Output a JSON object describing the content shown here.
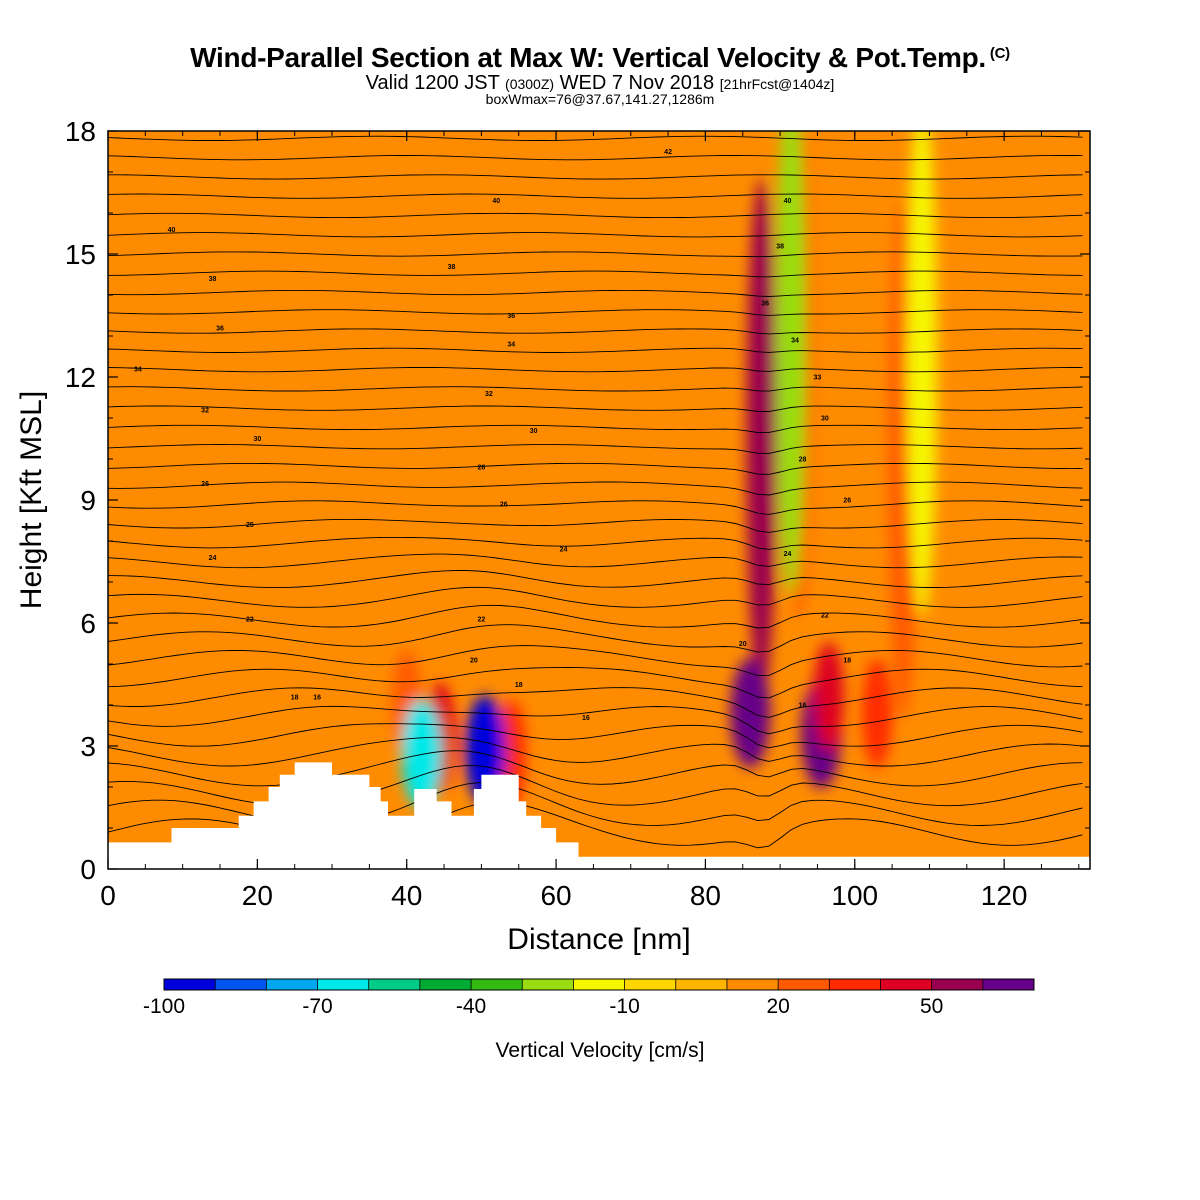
{
  "title": {
    "main": "Wind-Parallel Section at Max W: Vertical Velocity & Pot.Temp.",
    "copyright": "(C)",
    "valid_prefix": "Valid 1200 JST",
    "valid_utc": "(0300Z)",
    "valid_date": "WED 7 Nov 2018",
    "forecast": "[21hrFcst@1404z]",
    "box_info": "boxWmax=76@37.67,141.27,1286m"
  },
  "chart_data": {
    "type": "heatmap",
    "title": "Wind-Parallel Section at Max W: Vertical Velocity & Pot.Temp.",
    "xlabel": "Distance [nm]",
    "ylabel": "Height [Kft MSL]",
    "xlim": [
      0,
      131.5
    ],
    "ylim": [
      0,
      18
    ],
    "x_ticks": [
      "0",
      "20",
      "40",
      "60",
      "80",
      "100",
      "120"
    ],
    "y_ticks": [
      "0",
      "3",
      "6",
      "9",
      "12",
      "15",
      "18"
    ],
    "background_level": 10,
    "colorbar": {
      "label": "Vertical Velocity [cm/s]",
      "tick_labels": [
        "-100",
        "-70",
        "-40",
        "-10",
        "20",
        "50"
      ],
      "colors": [
        "#0000dd",
        "#0055ee",
        "#00a8f0",
        "#00e8e8",
        "#00cc88",
        "#00aa33",
        "#33bb11",
        "#99dd11",
        "#f6f600",
        "#ffd700",
        "#ffb400",
        "#ff8c00",
        "#ff5a00",
        "#ff2a00",
        "#dd0022",
        "#990050",
        "#660088"
      ]
    },
    "terrain_top_kft": [
      [
        0,
        0.65
      ],
      [
        8.5,
        0.65
      ],
      [
        8.5,
        1.0
      ],
      [
        17.5,
        1.0
      ],
      [
        17.5,
        1.3
      ],
      [
        19.5,
        1.3
      ],
      [
        19.5,
        1.65
      ],
      [
        21.5,
        1.65
      ],
      [
        21.5,
        2.0
      ],
      [
        23,
        2.0
      ],
      [
        23,
        2.3
      ],
      [
        25,
        2.3
      ],
      [
        25,
        2.6
      ],
      [
        30,
        2.6
      ],
      [
        30,
        2.3
      ],
      [
        35,
        2.3
      ],
      [
        35,
        2.0
      ],
      [
        36.5,
        2.0
      ],
      [
        36.5,
        1.65
      ],
      [
        37.5,
        1.65
      ],
      [
        37.5,
        1.3
      ],
      [
        41,
        1.3
      ],
      [
        41,
        1.95
      ],
      [
        44,
        1.95
      ],
      [
        44,
        1.65
      ],
      [
        46,
        1.65
      ],
      [
        46,
        1.3
      ],
      [
        49,
        1.3
      ],
      [
        49,
        1.95
      ],
      [
        50,
        1.95
      ],
      [
        50,
        2.3
      ],
      [
        55,
        2.3
      ],
      [
        55,
        1.65
      ],
      [
        56,
        1.65
      ],
      [
        56,
        1.3
      ],
      [
        58,
        1.3
      ],
      [
        58,
        1.0
      ],
      [
        60,
        1.0
      ],
      [
        60,
        0.65
      ],
      [
        63,
        0.65
      ],
      [
        63,
        0.3
      ],
      [
        131.5,
        0.3
      ]
    ],
    "vertical_velocity_cells": [
      {
        "x": 87.5,
        "z": 10.5,
        "value": 50
      },
      {
        "x": 86.0,
        "z": 3.8,
        "value": 70
      },
      {
        "x": 95.5,
        "z": 3.3,
        "value": 65
      },
      {
        "x": 96.5,
        "z": 4.2,
        "value": 40
      },
      {
        "x": 103.0,
        "z": 3.8,
        "value": 30
      },
      {
        "x": 106.5,
        "z": 10.0,
        "value": 25
      },
      {
        "x": 92.5,
        "z": 12.5,
        "value": 20
      },
      {
        "x": 44.5,
        "z": 3.2,
        "value": 40
      },
      {
        "x": 54.0,
        "z": 2.8,
        "value": 35
      },
      {
        "x": 40.0,
        "z": 4.0,
        "value": 25
      },
      {
        "x": 50.5,
        "z": 2.9,
        "value": -100
      },
      {
        "x": 42.0,
        "z": 2.8,
        "value": -70
      },
      {
        "x": 91.5,
        "z": 13.0,
        "value": -30
      },
      {
        "x": 109.0,
        "z": 12.5,
        "value": -20
      }
    ],
    "potential_temperature_isentropes": [
      {
        "label": "42",
        "x": 75,
        "z": 17.5
      },
      {
        "label": "40",
        "x": 91,
        "z": 16.3
      },
      {
        "label": "40",
        "x": 52,
        "z": 16.3
      },
      {
        "label": "40",
        "x": 8.5,
        "z": 15.6
      },
      {
        "label": "38",
        "x": 90,
        "z": 15.2
      },
      {
        "label": "38",
        "x": 46,
        "z": 14.7
      },
      {
        "label": "38",
        "x": 14,
        "z": 14.4
      },
      {
        "label": "36",
        "x": 88,
        "z": 13.8
      },
      {
        "label": "36",
        "x": 54,
        "z": 13.5
      },
      {
        "label": "36",
        "x": 15,
        "z": 13.2
      },
      {
        "label": "34",
        "x": 92,
        "z": 12.9
      },
      {
        "label": "34",
        "x": 54,
        "z": 12.8
      },
      {
        "label": "34",
        "x": 4,
        "z": 12.2
      },
      {
        "label": "33",
        "x": 95,
        "z": 12.0
      },
      {
        "label": "32",
        "x": 51,
        "z": 11.6
      },
      {
        "label": "32",
        "x": 13,
        "z": 11.2
      },
      {
        "label": "30",
        "x": 96,
        "z": 11.0
      },
      {
        "label": "30",
        "x": 57,
        "z": 10.7
      },
      {
        "label": "30",
        "x": 20,
        "z": 10.5
      },
      {
        "label": "28",
        "x": 93,
        "z": 10.0
      },
      {
        "label": "28",
        "x": 50,
        "z": 9.8
      },
      {
        "label": "26",
        "x": 99,
        "z": 9.0
      },
      {
        "label": "26",
        "x": 53,
        "z": 8.9
      },
      {
        "label": "26",
        "x": 13,
        "z": 9.4
      },
      {
        "label": "25",
        "x": 19,
        "z": 8.4
      },
      {
        "label": "24",
        "x": 61,
        "z": 7.8
      },
      {
        "label": "24",
        "x": 91,
        "z": 7.7
      },
      {
        "label": "24",
        "x": 14,
        "z": 7.6
      },
      {
        "label": "22",
        "x": 96,
        "z": 6.2
      },
      {
        "label": "22",
        "x": 50,
        "z": 6.1
      },
      {
        "label": "22",
        "x": 19,
        "z": 6.1
      },
      {
        "label": "20",
        "x": 85,
        "z": 5.5
      },
      {
        "label": "20",
        "x": 49,
        "z": 5.1
      },
      {
        "label": "18",
        "x": 99,
        "z": 5.1
      },
      {
        "label": "18",
        "x": 55,
        "z": 4.5
      },
      {
        "label": "18",
        "x": 25,
        "z": 4.2
      },
      {
        "label": "16",
        "x": 93,
        "z": 4.0
      },
      {
        "label": "16",
        "x": 64,
        "z": 3.7
      },
      {
        "label": "16",
        "x": 28,
        "z": 4.2
      }
    ]
  }
}
